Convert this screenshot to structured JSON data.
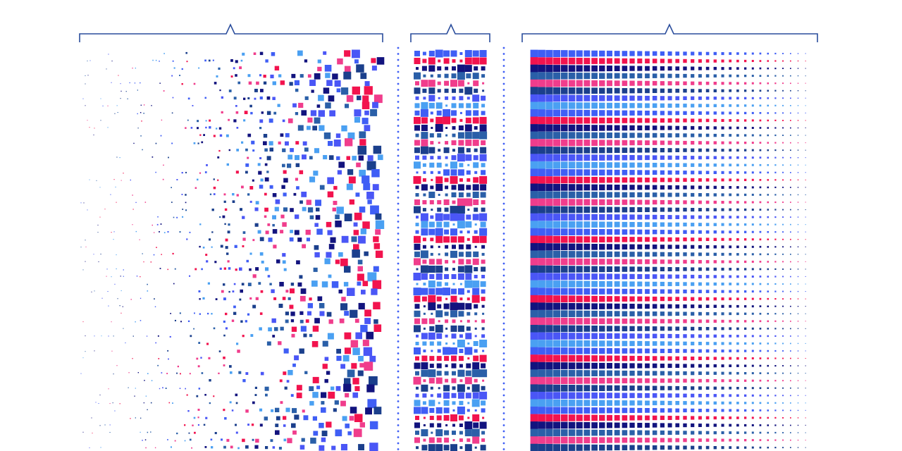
{
  "palette": [
    "#3f5ef5",
    "#f2134e",
    "#12137e",
    "#2a5fa8",
    "#f03d8c",
    "#1b3f8c",
    "#4a56f6",
    "#4aa0f2"
  ],
  "bracket_color": "#2a4d9c",
  "divider_color": "#3f5ef5",
  "background": "#ffffff"
}
